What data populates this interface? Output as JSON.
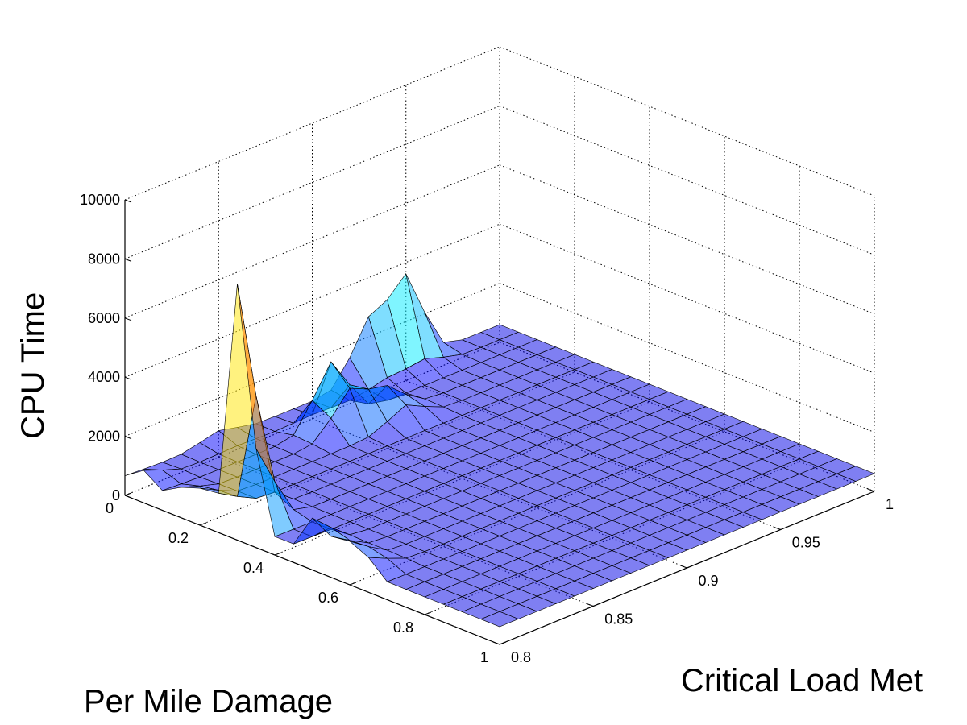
{
  "chart_data": {
    "type": "surface",
    "title": "",
    "xlabel": "Critical Load Met",
    "ylabel": "Per Mile Damage",
    "zlabel": "CPU Time",
    "xlim": [
      0.8,
      1
    ],
    "ylim": [
      0,
      1
    ],
    "zlim": [
      0,
      10000
    ],
    "x_ticks": [
      "0.8",
      "0.85",
      "0.9",
      "0.95",
      "1"
    ],
    "y_ticks": [
      "0",
      "0.2",
      "0.4",
      "0.6",
      "0.8",
      "1"
    ],
    "z_ticks": [
      "0",
      "2000",
      "4000",
      "6000",
      "8000",
      "10000"
    ],
    "grid": true,
    "colormap": "jet",
    "face_alpha": 0.5,
    "base_level": 600,
    "peaks": [
      {
        "x": 0.8,
        "y": 0.3,
        "z": 5500
      },
      {
        "x": 0.8,
        "y": 0.32,
        "z": 5000
      },
      {
        "x": 0.8,
        "y": 0.52,
        "z": 2200
      },
      {
        "x": 0.8,
        "y": 0.62,
        "z": 1800
      },
      {
        "x": 0.8,
        "y": 0.18,
        "z": 1500
      },
      {
        "x": 0.8,
        "y": 0.05,
        "z": 1100
      },
      {
        "x": 0.85,
        "y": 0.0,
        "z": 900
      },
      {
        "x": 0.89,
        "y": 0.12,
        "z": 3500
      },
      {
        "x": 0.91,
        "y": 0.17,
        "z": 1900
      },
      {
        "x": 0.95,
        "y": 0.0,
        "z": 3500
      },
      {
        "x": 0.93,
        "y": 0.0,
        "z": 2500
      }
    ]
  }
}
